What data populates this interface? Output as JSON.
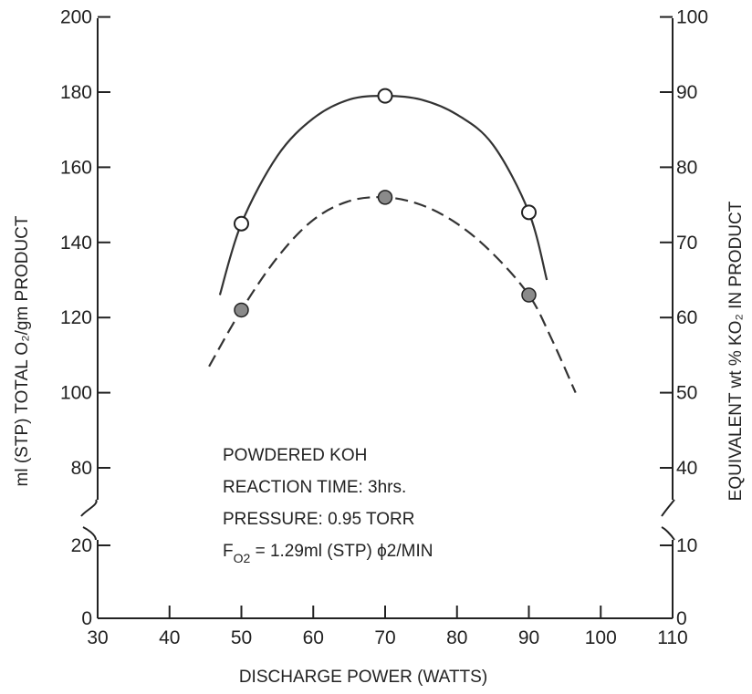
{
  "chart_data": {
    "type": "line",
    "xlabel": "DISCHARGE POWER (WATTS)",
    "ylabel": "ml (STP) TOTAL O₂/gm PRODUCT",
    "ylabel_right": "EQUIVALENT wt % KO₂ IN PRODUCT",
    "x_ticks": [
      30,
      40,
      50,
      60,
      70,
      80,
      90,
      100,
      110
    ],
    "y_ticks_lower": [
      0,
      20
    ],
    "y_ticks_upper": [
      80,
      100,
      120,
      140,
      160,
      180,
      200
    ],
    "y2_ticks_lower": [
      0,
      10
    ],
    "y2_ticks_upper": [
      40,
      50,
      60,
      70,
      80,
      90,
      100
    ],
    "xlim": [
      30,
      110
    ],
    "ylim": [
      0,
      200
    ],
    "ylim_right": [
      0,
      100
    ],
    "axis_break": "between 20 and 80 (left), between 10 and 40 (right)",
    "grid": false,
    "series": [
      {
        "style": "solid",
        "marker": "open-circle",
        "points": [
          {
            "x": 50,
            "y": 145
          },
          {
            "x": 70,
            "y": 179
          },
          {
            "x": 90,
            "y": 148
          }
        ],
        "curve": [
          [
            47,
            126
          ],
          [
            50,
            145
          ],
          [
            55,
            163
          ],
          [
            60,
            173
          ],
          [
            65,
            178
          ],
          [
            70,
            179
          ],
          [
            75,
            178
          ],
          [
            80,
            174
          ],
          [
            85,
            166
          ],
          [
            90,
            148
          ],
          [
            92.5,
            130
          ]
        ]
      },
      {
        "style": "dashed",
        "marker": "filled-circle",
        "points": [
          {
            "x": 50,
            "y": 122
          },
          {
            "x": 70,
            "y": 152
          },
          {
            "x": 90,
            "y": 126
          }
        ],
        "curve": [
          [
            45.5,
            107
          ],
          [
            50,
            122
          ],
          [
            55,
            136
          ],
          [
            60,
            146
          ],
          [
            65,
            151
          ],
          [
            70,
            152
          ],
          [
            75,
            150
          ],
          [
            80,
            145
          ],
          [
            85,
            137
          ],
          [
            90,
            126
          ],
          [
            93,
            115
          ],
          [
            96.5,
            100
          ]
        ]
      }
    ],
    "annotations": {
      "line1": "POWDERED KOH",
      "line2": "REACTION TIME: 3hrs.",
      "line3": "PRESSURE: 0.95 TORR",
      "line4_prefix": "F",
      "line4_sub": "O2",
      "line4_rest": " = 1.29ml (STP) ϕ2/MIN"
    }
  }
}
